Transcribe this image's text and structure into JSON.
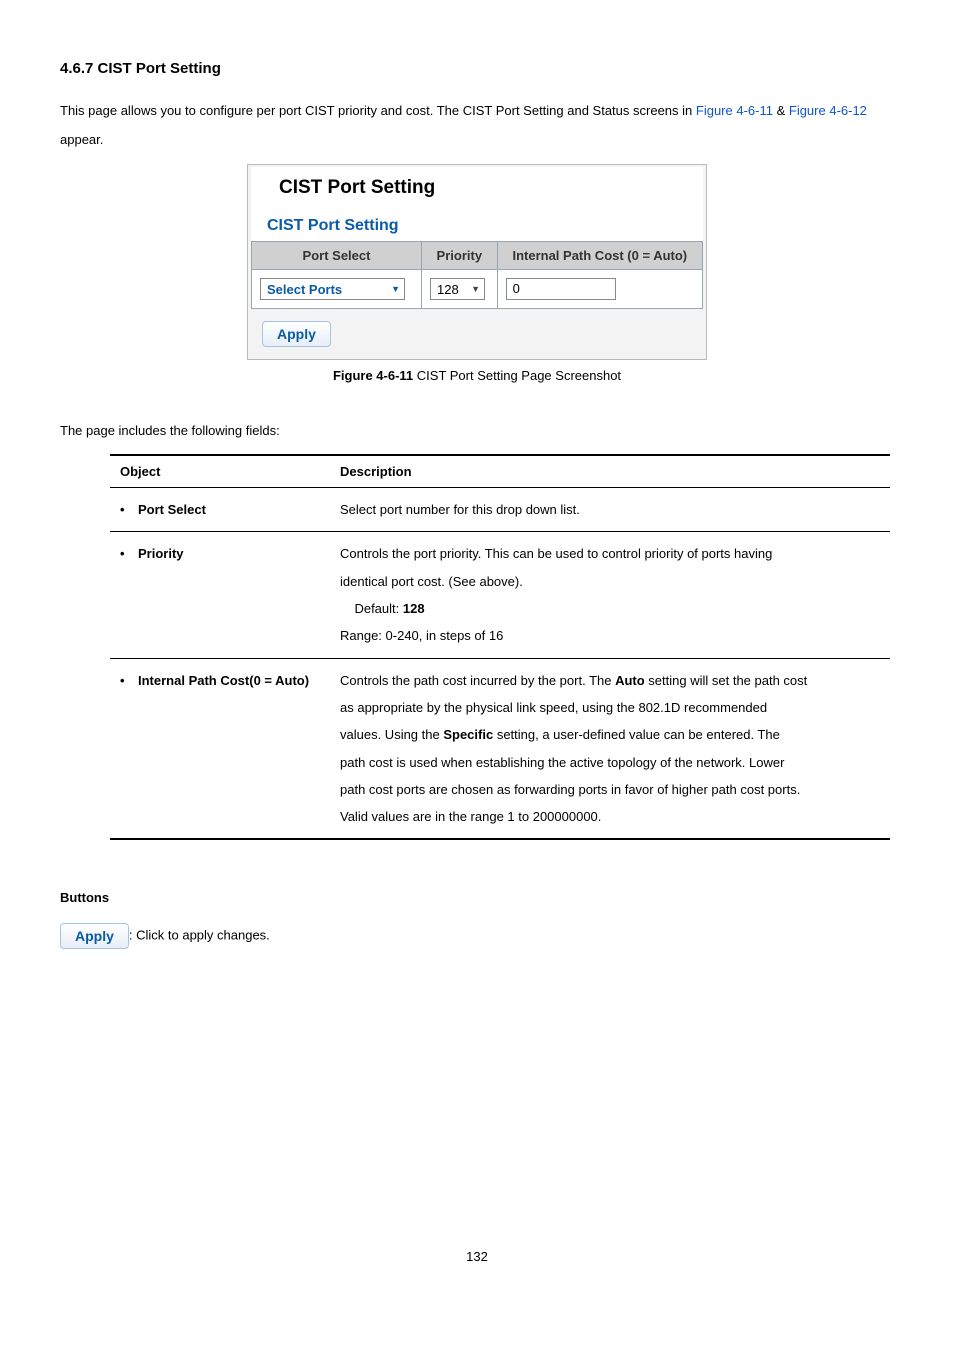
{
  "header": {
    "section_num": "4.6.7",
    "section_title": "CIST Port Setting"
  },
  "intro": {
    "prefix": "This page allows you to configure per port CIST priority and cost. The CIST Port Setting and Status screens in ",
    "fig1": "Figure 4-6-11",
    "amp": " & ",
    "fig2": "Figure 4-6-12",
    "suffix": " appear."
  },
  "figure": {
    "title": "CIST Port Setting",
    "subtitle": "CIST Port Setting",
    "cols": {
      "port_select": "Port Select",
      "priority": "Priority",
      "path_cost": "Internal Path Cost (0 = Auto)"
    },
    "row": {
      "port_label": "Select Ports",
      "priority_value": "128",
      "path_cost_value": "0"
    },
    "apply_label": "Apply",
    "caption_prefix": "Figure 4-6-11",
    "caption_rest": " CIST Port Setting Page Screenshot"
  },
  "fields_intro": "The page includes the following fields:",
  "desc_table": {
    "head_obj": "Object",
    "head_desc": "Description",
    "rows": [
      {
        "name": "Port Select",
        "desc_plain": "Select port number for this drop down list."
      },
      {
        "name": "Priority",
        "desc_l1": "Controls the port priority. This can be used to control priority of ports having",
        "desc_l2": "identical port cost. (See above).",
        "desc_l3a": "    Default: ",
        "desc_l3b": "128",
        "desc_l4": "Range: 0-240, in steps of 16"
      },
      {
        "name": "Internal Path Cost(0 = Auto)",
        "l1a": "Controls the path cost incurred by the port. The ",
        "l1b": "Auto",
        "l1c": " setting will set the path cost",
        "l2": "as appropriate by the physical link speed, using the 802.1D recommended",
        "l3a": "values. Using the ",
        "l3b": "Specific",
        "l3c": " setting, a user-defined value can be entered. The",
        "l4": "path cost is used when establishing the active topology of the network. Lower",
        "l5": "path cost ports are chosen as forwarding ports in favor of higher path cost ports.",
        "l6": "Valid values are in the range 1 to 200000000."
      }
    ]
  },
  "buttons": {
    "heading": "Buttons",
    "apply_label": "Apply",
    "apply_desc": ": Click to apply changes."
  },
  "page_number": "132",
  "colors": {
    "link": "#1155cc",
    "heading_blue": "#0b5aa8",
    "th_bg": "#d0d0d0",
    "panel_bg": "#f3f3f3",
    "border_gray": "#9aa5ae"
  }
}
